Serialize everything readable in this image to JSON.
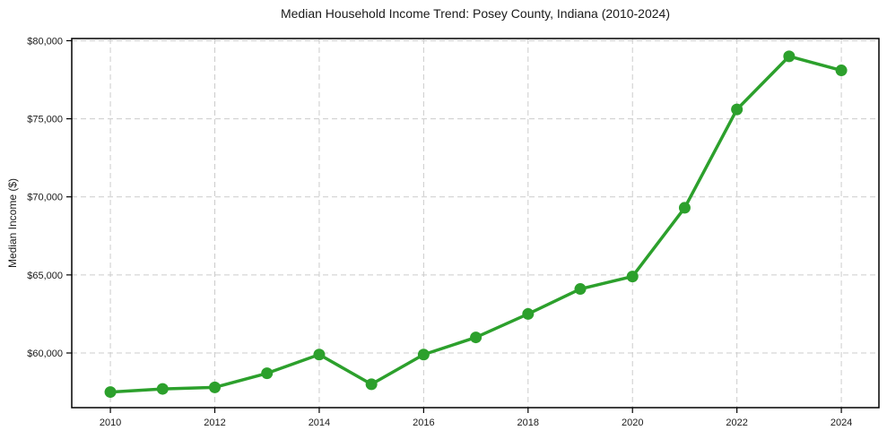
{
  "chart_data": {
    "type": "line",
    "title": "Median Household Income Trend: Posey County, Indiana (2010-2024)",
    "xlabel": "",
    "ylabel": "Median Income ($)",
    "x": [
      2010,
      2011,
      2012,
      2013,
      2014,
      2015,
      2016,
      2017,
      2018,
      2019,
      2020,
      2021,
      2022,
      2023,
      2024
    ],
    "values": [
      57500,
      57700,
      57800,
      58700,
      59900,
      58000,
      59900,
      61000,
      62500,
      64100,
      64900,
      69300,
      75600,
      79000,
      78100
    ],
    "units": "USD",
    "xticks": [
      2010,
      2012,
      2014,
      2016,
      2018,
      2020,
      2022,
      2024
    ],
    "xtick_labels": [
      "2010",
      "2012",
      "2014",
      "2016",
      "2018",
      "2020",
      "2022",
      "2024"
    ],
    "yticks": [
      60000,
      65000,
      70000,
      75000,
      80000
    ],
    "ytick_labels": [
      "$60,000",
      "$65,000",
      "$70,000",
      "$75,000",
      "$80,000"
    ],
    "xlim": [
      2009.26,
      2024.72
    ],
    "ylim": [
      56500,
      80140
    ],
    "grid": {
      "show": true,
      "style": "dashed",
      "axes": "both"
    },
    "legend": {
      "show": false
    },
    "marker": "circle",
    "colors": {
      "line": "#2ca02c",
      "marker": "#2ca02c",
      "grid": "#cccccc",
      "spine": "#000000",
      "text": "#1a1a1a",
      "background": "#ffffff"
    }
  }
}
